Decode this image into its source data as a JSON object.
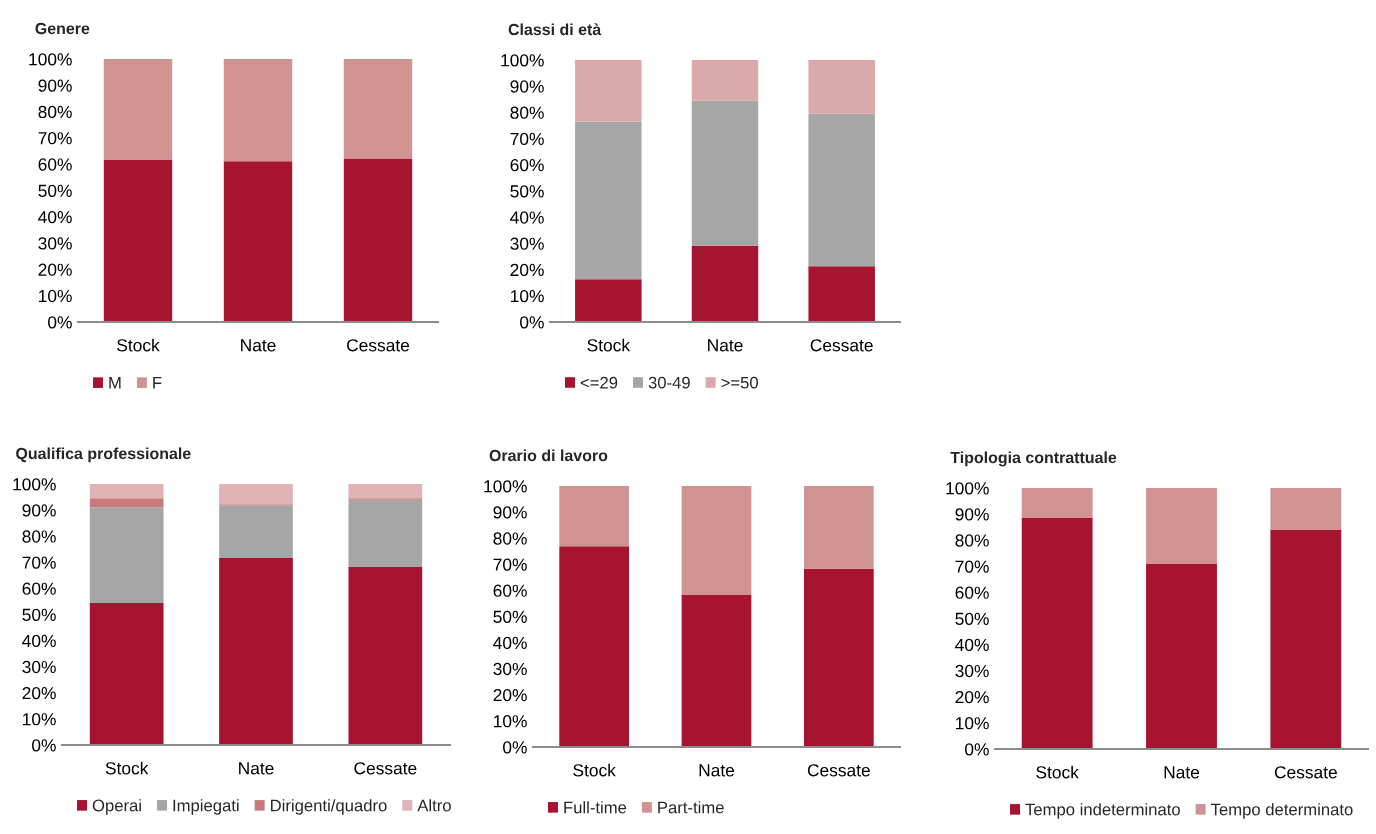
{
  "chart_data": [
    {
      "type": "bar",
      "title": "Genere",
      "stacked": true,
      "legend": "bottom",
      "categories": [
        "Stock",
        "Nate",
        "Cessate"
      ],
      "ylim": [
        0,
        100
      ],
      "yticks": [
        {
          "value": 0,
          "label": "0%"
        },
        {
          "value": 10,
          "label": "10%"
        },
        {
          "value": 20,
          "label": "20%"
        },
        {
          "value": 30,
          "label": "30%"
        },
        {
          "value": 40,
          "label": "40%"
        },
        {
          "value": 50,
          "label": "50%"
        },
        {
          "value": 60,
          "label": "60%"
        },
        {
          "value": 70,
          "label": "70%"
        },
        {
          "value": 80,
          "label": "80%"
        },
        {
          "value": 90,
          "label": "90%"
        },
        {
          "value": 100,
          "label": "100%"
        }
      ],
      "series": [
        {
          "name": "M",
          "color": "#a6142f",
          "values": [
            61.8,
            61.1,
            62.2
          ]
        },
        {
          "name": "F",
          "color": "#d19391",
          "values": [
            38.2,
            38.9,
            37.8
          ]
        }
      ]
    },
    {
      "type": "bar",
      "title": "Classi di età",
      "stacked": true,
      "legend": "bottom",
      "categories": [
        "Stock",
        "Nate",
        "Cessate"
      ],
      "ylim": [
        0,
        100
      ],
      "yticks": [
        {
          "value": 0,
          "label": "0%"
        },
        {
          "value": 10,
          "label": "10%"
        },
        {
          "value": 20,
          "label": "20%"
        },
        {
          "value": 30,
          "label": "30%"
        },
        {
          "value": 40,
          "label": "40%"
        },
        {
          "value": 50,
          "label": "50%"
        },
        {
          "value": 60,
          "label": "60%"
        },
        {
          "value": 70,
          "label": "70%"
        },
        {
          "value": 80,
          "label": "80%"
        },
        {
          "value": 90,
          "label": "90%"
        },
        {
          "value": 100,
          "label": "100%"
        }
      ],
      "series": [
        {
          "name": "<=29",
          "color": "#a6142f",
          "values": [
            16.3,
            29.1,
            21.3
          ]
        },
        {
          "name": "30-49",
          "color": "#a6a6a6",
          "values": [
            60.2,
            55.4,
            58.2
          ]
        },
        {
          "name": ">=50",
          "color": "#dba9a9",
          "values": [
            23.5,
            15.5,
            20.5
          ]
        }
      ]
    },
    {
      "type": "bar",
      "title": "Qualifica professionale",
      "stacked": true,
      "legend": "bottom",
      "categories": [
        "Stock",
        "Nate",
        "Cessate"
      ],
      "ylim": [
        0,
        100
      ],
      "yticks": [
        {
          "value": 0,
          "label": "0%"
        },
        {
          "value": 10,
          "label": "10%"
        },
        {
          "value": 20,
          "label": "20%"
        },
        {
          "value": 30,
          "label": "30%"
        },
        {
          "value": 40,
          "label": "40%"
        },
        {
          "value": 50,
          "label": "50%"
        },
        {
          "value": 60,
          "label": "60%"
        },
        {
          "value": 70,
          "label": "70%"
        },
        {
          "value": 80,
          "label": "80%"
        },
        {
          "value": 90,
          "label": "90%"
        },
        {
          "value": 100,
          "label": "100%"
        }
      ],
      "series": [
        {
          "name": "Operai",
          "color": "#a6142f",
          "values": [
            54.4,
            71.6,
            68.2
          ]
        },
        {
          "name": "Impiegati",
          "color": "#a6a6a6",
          "values": [
            36.6,
            20.2,
            25.8
          ]
        },
        {
          "name": "Dirigenti/quadro",
          "color": "#c87a7a",
          "values": [
            3.5,
            0.4,
            0.5
          ]
        },
        {
          "name": "Altro",
          "color": "#e0b4b4",
          "values": [
            5.5,
            7.8,
            5.5
          ]
        }
      ]
    },
    {
      "type": "bar",
      "title": "Orario di lavoro",
      "stacked": true,
      "legend": "bottom",
      "categories": [
        "Stock",
        "Nate",
        "Cessate"
      ],
      "ylim": [
        0,
        100
      ],
      "yticks": [
        {
          "value": 0,
          "label": "0%"
        },
        {
          "value": 10,
          "label": "10%"
        },
        {
          "value": 20,
          "label": "20%"
        },
        {
          "value": 30,
          "label": "30%"
        },
        {
          "value": 40,
          "label": "40%"
        },
        {
          "value": 50,
          "label": "50%"
        },
        {
          "value": 60,
          "label": "60%"
        },
        {
          "value": 70,
          "label": "70%"
        },
        {
          "value": 80,
          "label": "80%"
        },
        {
          "value": 90,
          "label": "90%"
        },
        {
          "value": 100,
          "label": "100%"
        }
      ],
      "series": [
        {
          "name": "Full-time",
          "color": "#a6142f",
          "values": [
            76.9,
            58.2,
            68.3
          ]
        },
        {
          "name": "Part-time",
          "color": "#d19391",
          "values": [
            23.1,
            41.8,
            31.7
          ]
        }
      ]
    },
    {
      "type": "bar",
      "title": "Tipologia contrattuale",
      "stacked": true,
      "legend": "bottom",
      "categories": [
        "Stock",
        "Nate",
        "Cessate"
      ],
      "ylim": [
        0,
        100
      ],
      "yticks": [
        {
          "value": 0,
          "label": "0%"
        },
        {
          "value": 10,
          "label": "10%"
        },
        {
          "value": 20,
          "label": "20%"
        },
        {
          "value": 30,
          "label": "30%"
        },
        {
          "value": 40,
          "label": "40%"
        },
        {
          "value": 50,
          "label": "50%"
        },
        {
          "value": 60,
          "label": "60%"
        },
        {
          "value": 70,
          "label": "70%"
        },
        {
          "value": 80,
          "label": "80%"
        },
        {
          "value": 90,
          "label": "90%"
        },
        {
          "value": 100,
          "label": "100%"
        }
      ],
      "series": [
        {
          "name": "Tempo indeterminato",
          "color": "#a6142f",
          "values": [
            88.7,
            70.9,
            84.1
          ]
        },
        {
          "name": "Tempo determinato",
          "color": "#d19391",
          "values": [
            11.3,
            29.1,
            15.9
          ]
        }
      ]
    }
  ]
}
